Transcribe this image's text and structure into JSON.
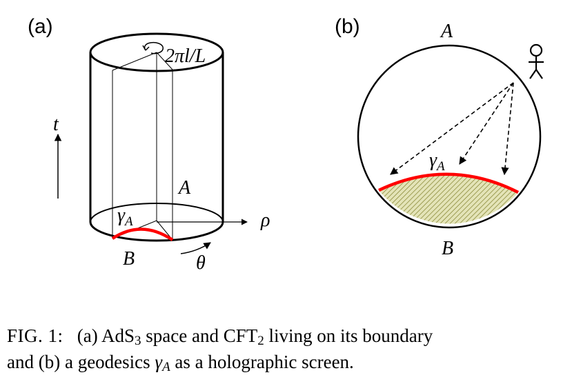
{
  "panel_a": {
    "label": "(a)",
    "rotation_label": "2πl/L",
    "time_axis_label": "t",
    "radial_axis_label": "ρ",
    "angle_label": "θ",
    "region_a_label": "A",
    "region_b_label": "B",
    "geodesic_label": "γ",
    "geodesic_sub": "A"
  },
  "panel_b": {
    "label": "(b)",
    "region_a_label": "A",
    "region_b_label": "B",
    "geodesic_label": "γ",
    "geodesic_sub": "A"
  },
  "colors": {
    "geodesic": "#ff0000",
    "shaded_region": "#c8c97a",
    "stroke": "#000000"
  },
  "caption": {
    "fig_label": "FIG. 1:",
    "line1_text_a": "(a) AdS",
    "line1_sub_1": "3",
    "line1_text_b": " space and CFT",
    "line1_sub_2": "2",
    "line1_text_c": " living on its boundary",
    "line2_text_a": "and (b) a geodesics ",
    "line2_gamma": "γ",
    "line2_gamma_sub": "A",
    "line2_text_b": " as a holographic screen."
  }
}
